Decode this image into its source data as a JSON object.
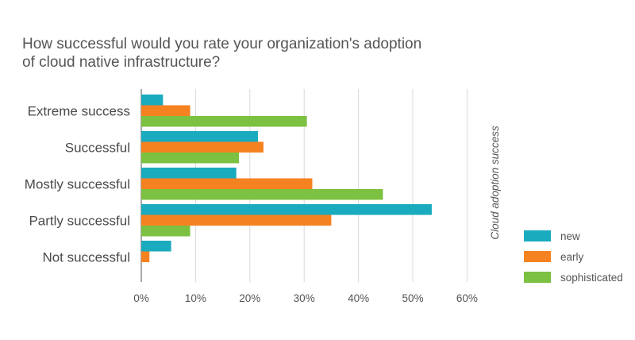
{
  "chart_data": {
    "type": "bar",
    "orientation": "horizontal",
    "title": "How successful would you rate your organization's adoption of cloud native infrastructure?",
    "side_label": "Cloud adoption success",
    "categories": [
      "Extreme success",
      "Successful",
      "Mostly successful",
      "Partly successful",
      "Not successful"
    ],
    "series": [
      {
        "name": "new",
        "color": "#1aabbf",
        "values": [
          4,
          21.5,
          17.5,
          53.5,
          5.5
        ]
      },
      {
        "name": "early",
        "color": "#f58220",
        "values": [
          9,
          22.5,
          31.5,
          35,
          1.5
        ]
      },
      {
        "name": "sophisticated",
        "color": "#7cc142",
        "values": [
          30.5,
          18,
          44.5,
          9,
          0
        ]
      }
    ],
    "x_ticks": [
      "0%",
      "10%",
      "20%",
      "30%",
      "40%",
      "50%",
      "60%"
    ],
    "xlim": [
      0,
      60
    ],
    "grid": true,
    "legend_position": "bottom-right"
  }
}
